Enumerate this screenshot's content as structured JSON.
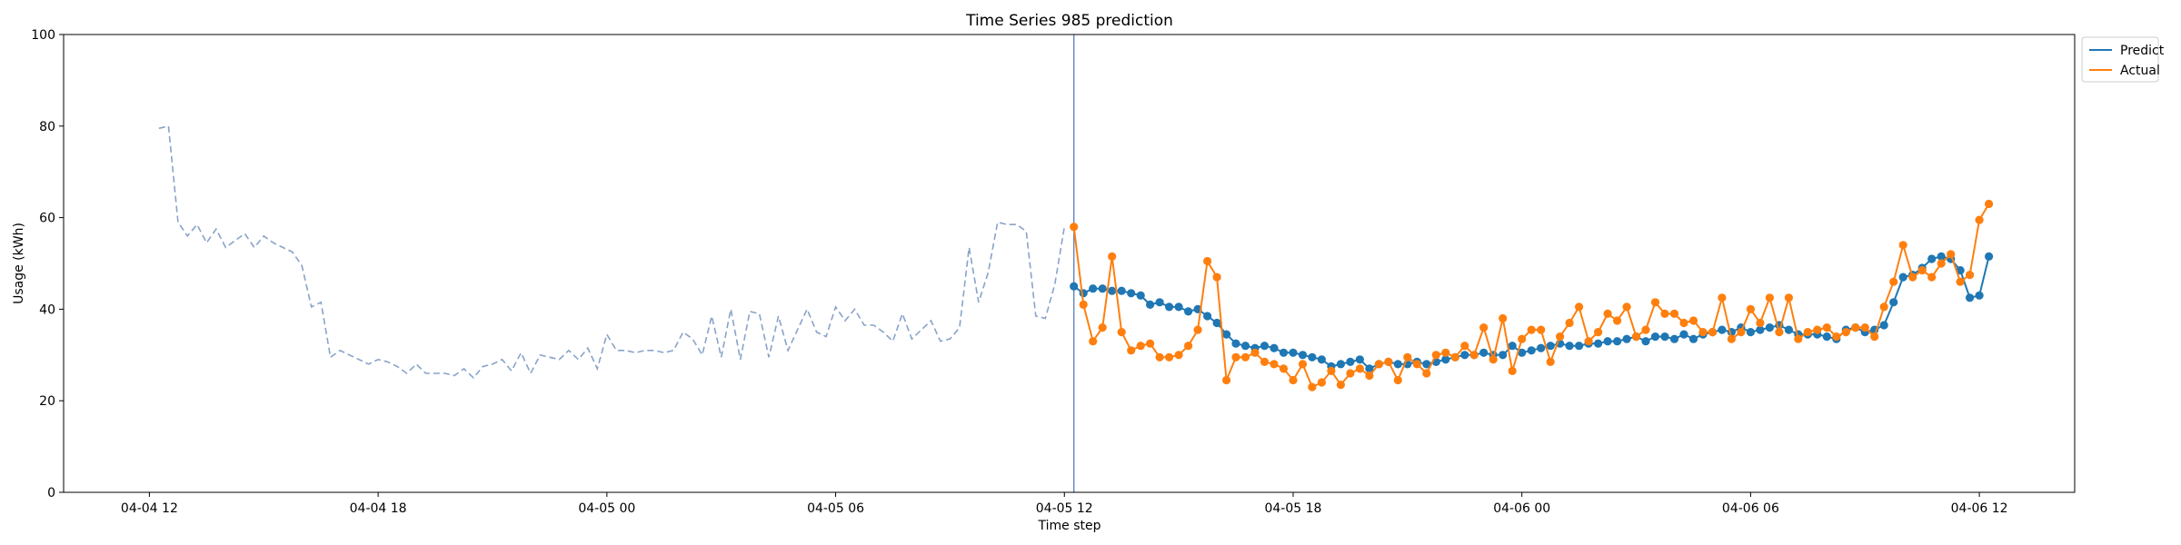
{
  "chart_data": {
    "type": "line",
    "title": "Time Series 985 prediction",
    "xlabel": "Time step",
    "ylabel": "Usage (kWh)",
    "ylim": [
      0,
      100
    ],
    "yticks": [
      0,
      20,
      40,
      60,
      80,
      100
    ],
    "xlim": [
      "2024-04-04 09:45",
      "2024-04-06 14:30"
    ],
    "xticks": [
      {
        "t": "2024-04-04 12:00",
        "label": "04-04 12"
      },
      {
        "t": "2024-04-04 18:00",
        "label": "04-04 18"
      },
      {
        "t": "2024-04-05 00:00",
        "label": "04-05 00"
      },
      {
        "t": "2024-04-05 06:00",
        "label": "04-05 06"
      },
      {
        "t": "2024-04-05 12:00",
        "label": "04-05 12"
      },
      {
        "t": "2024-04-05 18:00",
        "label": "04-05 18"
      },
      {
        "t": "2024-04-06 00:00",
        "label": "04-06 00"
      },
      {
        "t": "2024-04-06 06:00",
        "label": "04-06 06"
      },
      {
        "t": "2024-04-06 12:00",
        "label": "04-06 12"
      }
    ],
    "history": {
      "start": "2024-04-04 12:15",
      "step_minutes": 15,
      "color": "#88a3c9",
      "values": [
        79.5,
        80,
        59,
        56,
        58.5,
        54.5,
        57.5,
        53.5,
        55,
        56.5,
        53.5,
        56,
        54.5,
        53.5,
        52.5,
        49.5,
        40.5,
        41.5,
        29.5,
        31,
        30,
        29,
        28,
        29,
        28.5,
        27.5,
        26,
        28,
        26,
        26,
        26,
        25.5,
        27,
        25,
        27.5,
        28,
        29,
        26.5,
        30.5,
        26,
        30,
        29.5,
        29,
        31,
        29,
        31.5,
        27,
        34.5,
        31,
        31,
        30.5,
        31,
        31,
        30.5,
        31,
        35,
        33.5,
        30,
        38.5,
        29.5,
        40,
        29,
        39.5,
        39,
        29.5,
        38.5,
        31,
        35.5,
        40,
        35,
        34,
        40.5,
        37.5,
        40,
        36.5,
        36.5,
        35,
        33,
        39,
        33.5,
        35.5,
        37.5,
        33,
        33.5,
        36,
        53.5,
        41.5,
        48,
        59,
        58.5,
        58.5,
        57,
        38.5,
        38,
        45.5,
        58
      ]
    },
    "forecast_start": "2024-04-05 12:15",
    "forecast_step_minutes": 15,
    "vline": {
      "t": "2024-04-05 12:15",
      "color": "#4d6fb5"
    },
    "legend": {
      "position": "outside-top-right"
    },
    "series": [
      {
        "name": "Predict",
        "color": "#1f77b4",
        "values": [
          45,
          43.5,
          44.5,
          44.5,
          44,
          44,
          43.5,
          43,
          41,
          41.5,
          40.5,
          40.5,
          39.5,
          40,
          38.5,
          37,
          34.5,
          32.5,
          32,
          31.5,
          32,
          31.5,
          30.5,
          30.5,
          30,
          29.5,
          29,
          27.5,
          28,
          28.5,
          29,
          27,
          28,
          28.5,
          28,
          28,
          28.5,
          28,
          28.5,
          29,
          29.5,
          30,
          30,
          30.5,
          30,
          30,
          32,
          30.5,
          31,
          31.5,
          32,
          32.5,
          32,
          32,
          32.5,
          32.5,
          33,
          33,
          33.5,
          34,
          33,
          34,
          34,
          33.5,
          34.5,
          33.5,
          34.5,
          35,
          35.5,
          35,
          36,
          35,
          35.5,
          36,
          36.5,
          35.5,
          34.5,
          34.5,
          34.5,
          34,
          33.5,
          35.5,
          36,
          35,
          35.5,
          36.5,
          41.5,
          47,
          47.5,
          49,
          51,
          51.5,
          51,
          48.5,
          42.5,
          43,
          51.5
        ]
      },
      {
        "name": "Actual",
        "color": "#ff7f0e",
        "values": [
          58,
          41,
          33,
          36,
          51.5,
          35,
          31,
          32,
          32.5,
          29.5,
          29.5,
          30,
          32,
          35.5,
          50.5,
          47,
          24.5,
          29.5,
          29.5,
          30.5,
          28.5,
          28,
          27,
          24.5,
          28,
          23,
          24,
          26.5,
          23.5,
          26,
          27,
          25.5,
          28,
          28.5,
          24.5,
          29.5,
          28,
          26,
          30,
          30.5,
          29.5,
          32,
          30,
          36,
          29,
          38,
          26.5,
          33.5,
          35.5,
          35.5,
          28.5,
          34,
          37,
          40.5,
          33,
          35,
          39,
          37.5,
          40.5,
          34,
          35.5,
          41.5,
          39,
          39,
          37,
          37.5,
          35,
          35,
          42.5,
          33.5,
          35,
          40,
          37,
          42.5,
          35,
          42.5,
          33.5,
          35,
          35.5,
          36,
          34,
          35,
          36,
          36,
          34,
          40.5,
          46,
          54,
          47,
          48.5,
          47,
          50,
          52,
          46,
          47.5,
          59.5,
          63
        ]
      }
    ]
  }
}
